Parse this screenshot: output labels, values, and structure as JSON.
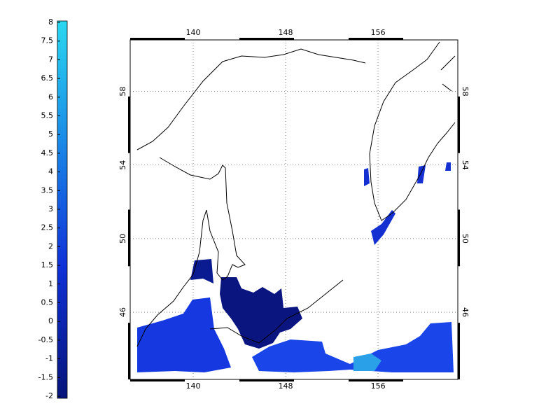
{
  "colorbar": {
    "range": [
      -2,
      8
    ],
    "ticks": [
      -2,
      -1.5,
      -1,
      -0.5,
      0,
      0.5,
      1,
      1.5,
      2,
      2.5,
      3,
      3.5,
      4,
      4.5,
      5,
      5.5,
      6,
      6.5,
      7,
      7.5,
      8
    ]
  },
  "map": {
    "xlim": [
      134.55,
      162.9
    ],
    "ylim": [
      42.35,
      60.8
    ],
    "lon_ticks": [
      140,
      148,
      156
    ],
    "lat_ticks": [
      46,
      50,
      54,
      58
    ],
    "grid": true
  }
}
